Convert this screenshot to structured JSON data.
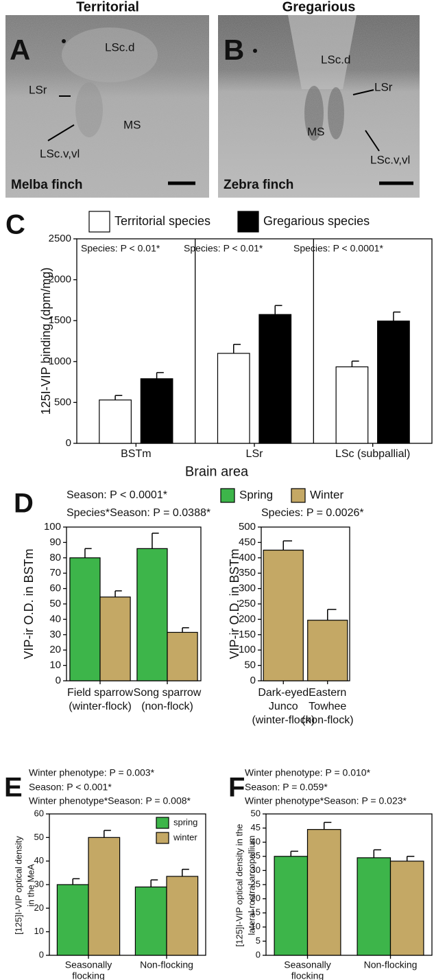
{
  "photos": {
    "titles": [
      "Territorial",
      "Gregarious"
    ],
    "panels": [
      {
        "letter": "A",
        "labels": [
          "LSc.d",
          "LSr",
          "MS",
          "LSc.v,vl"
        ],
        "species": "Melba finch"
      },
      {
        "letter": "B",
        "labels": [
          "LSc.d",
          "LSr",
          "MS",
          "LSc.v,vl"
        ],
        "species": "Zebra finch"
      }
    ]
  },
  "chart_data": [
    {
      "type": "bar",
      "panel": "C",
      "ylabel": "125I-VIP binding (dpm/mg)",
      "xlabel": "Brain area",
      "categories": [
        "BSTm",
        "LSr",
        "LSc (subpallial)"
      ],
      "annotations": [
        "Species: P < 0.01*",
        "Species: P < 0.01*",
        "Species: P < 0.0001*"
      ],
      "series": [
        {
          "name": "Territorial species",
          "color": "#ffffff",
          "values": [
            530,
            1100,
            935
          ],
          "errors": [
            55,
            110,
            70
          ]
        },
        {
          "name": "Gregarious species",
          "color": "#000000",
          "values": [
            790,
            1575,
            1495
          ],
          "errors": [
            75,
            110,
            110
          ]
        }
      ],
      "ylim": [
        0,
        2500
      ],
      "yticks": [
        0,
        500,
        1000,
        1500,
        2000,
        2500
      ]
    },
    {
      "type": "bar",
      "panel": "D",
      "ylabel": "VIP-ir O.D. in BSTm",
      "categories": [
        [
          "Field sparrow",
          "(winter-flock)"
        ],
        [
          "Song sparrow",
          "(non-flock)"
        ]
      ],
      "annotations": [
        "Season: P < 0.0001*",
        "Species*Season: P = 0.0388*"
      ],
      "series": [
        {
          "name": "Spring",
          "color": "#3db54a",
          "values": [
            80,
            86
          ],
          "errors": [
            6,
            10
          ]
        },
        {
          "name": "Winter",
          "color": "#c4a865",
          "values": [
            54.5,
            31.5
          ],
          "errors": [
            4,
            3
          ]
        }
      ],
      "ylim": [
        0,
        100
      ],
      "yticks": [
        0,
        10,
        20,
        30,
        40,
        50,
        60,
        70,
        80,
        90,
        100
      ]
    },
    {
      "type": "bar",
      "ylabel": "VIP-ir O.D. in BSTm",
      "categories": [
        [
          "Dark-eyed",
          "Junco",
          "(winter-flock)"
        ],
        [
          "Eastern",
          "Towhee",
          "(non-flock)"
        ]
      ],
      "annotations": [
        "Species: P = 0.0026*"
      ],
      "series": [
        {
          "color": "#c4a865",
          "values": [
            425,
            197
          ],
          "errors": [
            30,
            35
          ]
        }
      ],
      "ylim": [
        0,
        500
      ],
      "yticks": [
        0,
        50,
        100,
        150,
        200,
        250,
        300,
        350,
        400,
        450,
        500
      ]
    },
    {
      "type": "bar",
      "panel": "E",
      "ylabel": [
        "[125]I-VIP optical density",
        "in the MeA"
      ],
      "categories": [
        [
          "Seasonally",
          "flocking"
        ],
        [
          "Non-flocking"
        ]
      ],
      "annotations": [
        "Winter phenotype: P = 0.003*",
        "Season: P < 0.001*",
        "Winter phenotype*Season: P = 0.008*"
      ],
      "series": [
        {
          "name": "spring",
          "color": "#3db54a",
          "values": [
            30,
            29
          ],
          "errors": [
            2.5,
            3
          ]
        },
        {
          "name": "winter",
          "color": "#c4a865",
          "values": [
            50,
            33.5
          ],
          "errors": [
            3,
            3
          ]
        }
      ],
      "ylim": [
        0,
        60
      ],
      "yticks": [
        0,
        10,
        20,
        30,
        40,
        50,
        60
      ]
    },
    {
      "type": "bar",
      "panel": "F",
      "ylabel": [
        "[125]I-VIP optical density in the",
        "lateral rostral arcopallium"
      ],
      "categories": [
        [
          "Seasonally",
          "flocking"
        ],
        [
          "Non-flocking"
        ]
      ],
      "annotations": [
        "Winter phenotype: P = 0.010*",
        "Season: P = 0.059*",
        "Winter phenotype*Season: P = 0.023*"
      ],
      "series": [
        {
          "color": "#3db54a",
          "values": [
            35,
            34.5
          ],
          "errors": [
            1.8,
            2.8
          ]
        },
        {
          "color": "#c4a865",
          "values": [
            44.5,
            33.3
          ],
          "errors": [
            2.5,
            1.7
          ]
        }
      ],
      "ylim": [
        0,
        50
      ],
      "yticks": [
        0,
        5,
        10,
        15,
        20,
        25,
        30,
        35,
        40,
        45,
        50
      ]
    }
  ]
}
